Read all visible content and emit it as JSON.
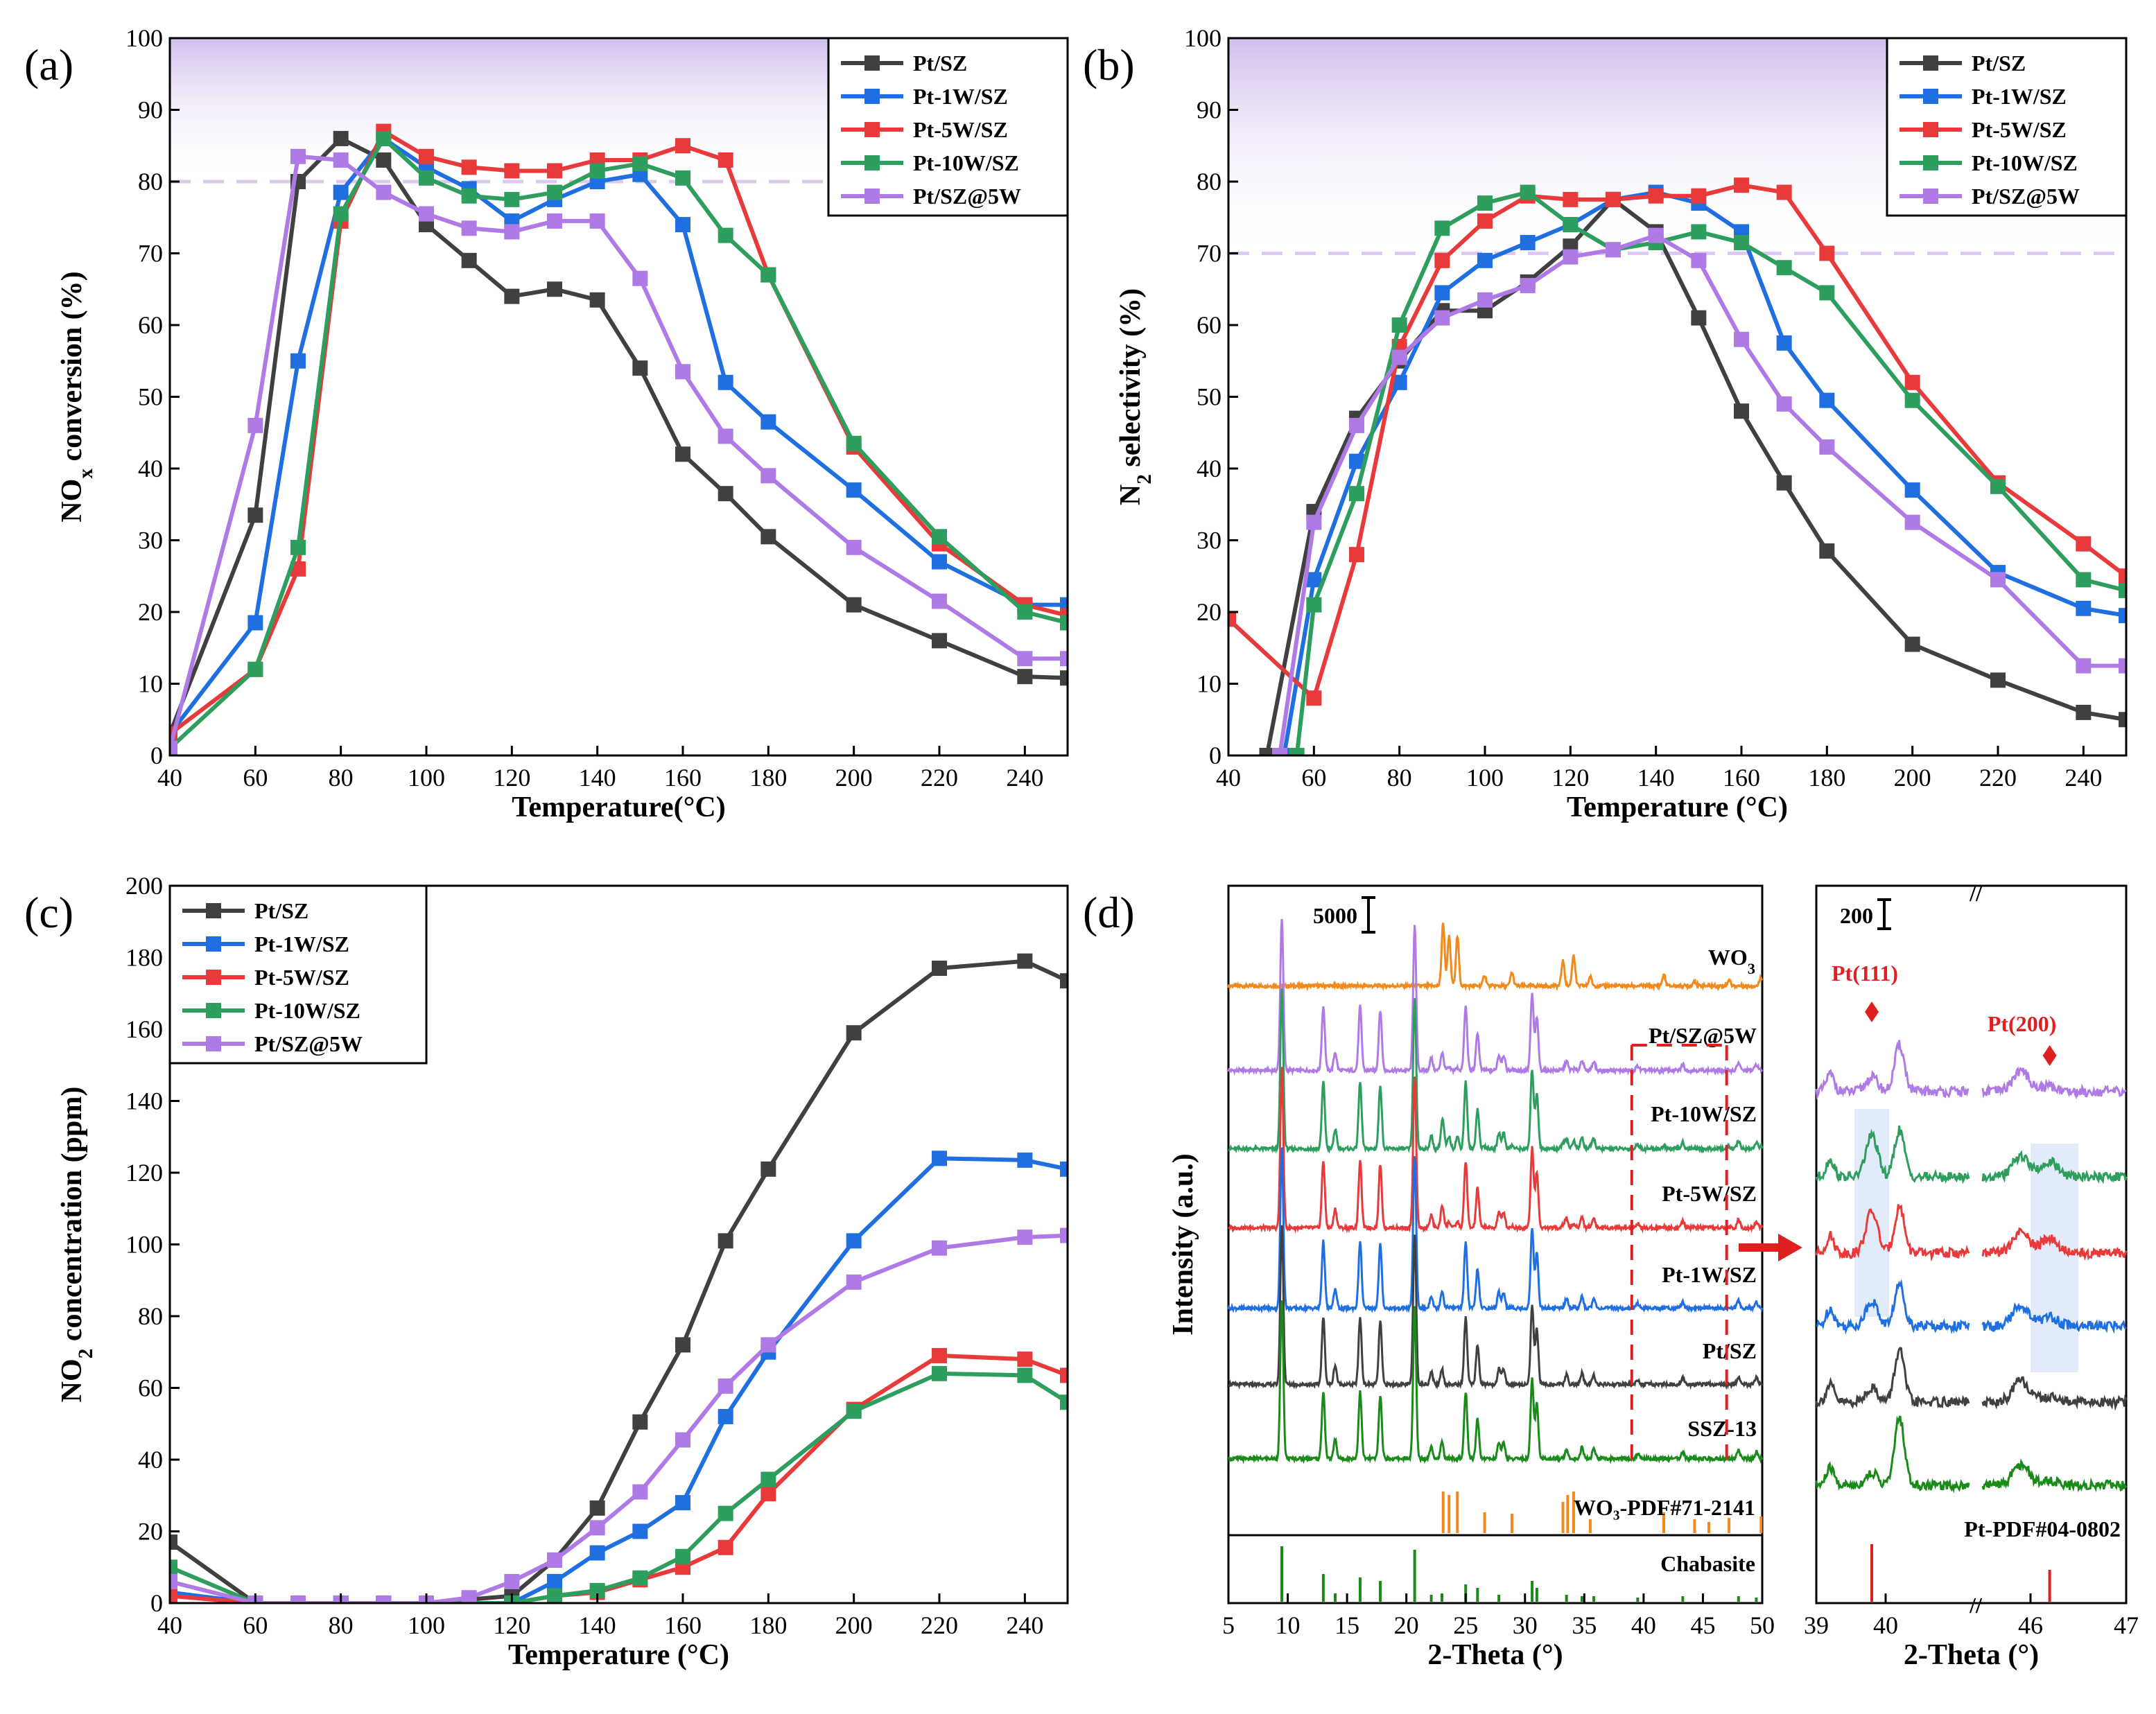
{
  "colors": {
    "Pt/SZ": "#404040",
    "Pt-1W/SZ": "#1f6fe0",
    "Pt-5W/SZ": "#e83a3a",
    "Pt-10W/SZ": "#2e9e5e",
    "Pt/SZ@5W": "#b07ae6",
    "WO3": "#f08a1c",
    "SSZ-13": "#1a8a1a",
    "Chabasite": "#1a8a1a",
    "Pt-PDF": "#e02020"
  },
  "chart_data": [
    {
      "id": "a",
      "type": "line",
      "panel_label": "(a)",
      "xlabel": "Temperature(°C)",
      "ylabel": "NOx conversion (%)",
      "xlim": [
        40,
        250
      ],
      "ylim": [
        0,
        100
      ],
      "xticks": [
        40,
        60,
        80,
        100,
        120,
        140,
        160,
        180,
        200,
        220,
        240
      ],
      "yticks": [
        0,
        10,
        20,
        30,
        40,
        50,
        60,
        70,
        80,
        90,
        100
      ],
      "reference_line": 80,
      "shade_from": 80,
      "legend": [
        "Pt/SZ",
        "Pt-1W/SZ",
        "Pt-5W/SZ",
        "Pt-10W/SZ",
        "Pt/SZ@5W"
      ],
      "series": [
        {
          "name": "Pt/SZ",
          "x": [
            40,
            60,
            70,
            80,
            90,
            100,
            110,
            120,
            130,
            140,
            150,
            160,
            170,
            180,
            200,
            220,
            240,
            250
          ],
          "y": [
            3,
            33.5,
            80,
            86,
            83,
            74,
            69,
            64,
            65,
            63.5,
            54,
            42,
            36.5,
            30.5,
            21,
            16,
            11,
            10.8
          ]
        },
        {
          "name": "Pt-1W/SZ",
          "x": [
            40,
            60,
            70,
            80,
            90,
            100,
            110,
            120,
            130,
            140,
            150,
            160,
            170,
            180,
            200,
            220,
            240,
            250
          ],
          "y": [
            3,
            18.5,
            55,
            78.5,
            86,
            82,
            79,
            74.5,
            77.5,
            80,
            81,
            74,
            52,
            46.5,
            37,
            27,
            21,
            21
          ]
        },
        {
          "name": "Pt-5W/SZ",
          "x": [
            40,
            60,
            70,
            80,
            90,
            100,
            110,
            120,
            130,
            140,
            150,
            160,
            170,
            180,
            200,
            220,
            240,
            250
          ],
          "y": [
            3,
            12,
            26,
            74.5,
            87,
            83.5,
            82,
            81.5,
            81.5,
            83,
            83,
            85,
            83,
            67,
            43,
            29.5,
            21,
            19.5
          ]
        },
        {
          "name": "Pt-10W/SZ",
          "x": [
            40,
            60,
            70,
            80,
            90,
            100,
            110,
            120,
            130,
            140,
            150,
            160,
            170,
            180,
            200,
            220,
            240,
            250
          ],
          "y": [
            1,
            12,
            29,
            75.5,
            86,
            80.5,
            78,
            77.5,
            78.5,
            81.5,
            82.5,
            80.5,
            72.5,
            67,
            43.5,
            30.5,
            20,
            18.5
          ]
        },
        {
          "name": "Pt/SZ@5W",
          "x": [
            40,
            60,
            70,
            80,
            90,
            100,
            110,
            120,
            130,
            140,
            150,
            160,
            170,
            180,
            200,
            220,
            240,
            250
          ],
          "y": [
            1,
            46,
            83.5,
            83,
            78.5,
            75.5,
            73.5,
            73,
            74.5,
            74.5,
            66.5,
            53.5,
            44.5,
            39,
            29,
            21.5,
            13.5,
            13.5
          ]
        }
      ]
    },
    {
      "id": "b",
      "type": "line",
      "panel_label": "(b)",
      "xlabel": "Temperature (°C)",
      "ylabel": "N2 selectivity (%)",
      "xlim": [
        40,
        250
      ],
      "ylim": [
        0,
        100
      ],
      "xticks": [
        40,
        60,
        80,
        100,
        120,
        140,
        160,
        180,
        200,
        220,
        240
      ],
      "yticks": [
        0,
        10,
        20,
        30,
        40,
        50,
        60,
        70,
        80,
        90,
        100
      ],
      "reference_line": 70,
      "shade_from": 70,
      "legend": [
        "Pt/SZ",
        "Pt-1W/SZ",
        "Pt-5W/SZ",
        "Pt-10W/SZ",
        "Pt/SZ@5W"
      ],
      "series": [
        {
          "name": "Pt/SZ",
          "x": [
            49,
            60,
            70,
            80,
            90,
            100,
            110,
            120,
            130,
            140,
            150,
            160,
            170,
            180,
            200,
            220,
            240,
            250
          ],
          "y": [
            0,
            34,
            47,
            55,
            62,
            62,
            66,
            71,
            77.5,
            73,
            61,
            48,
            38,
            28.5,
            15.5,
            10.5,
            6,
            5
          ]
        },
        {
          "name": "Pt-1W/SZ",
          "x": [
            53,
            60,
            70,
            80,
            90,
            100,
            110,
            120,
            130,
            140,
            150,
            160,
            170,
            180,
            200,
            220,
            240,
            250
          ],
          "y": [
            0,
            24.5,
            41,
            52,
            64.5,
            69,
            71.5,
            74,
            77.5,
            78.5,
            77,
            73,
            57.5,
            49.5,
            37,
            25.5,
            20.5,
            19.5
          ]
        },
        {
          "name": "Pt-5W/SZ",
          "x": [
            40,
            60,
            70,
            80,
            90,
            100,
            110,
            120,
            130,
            140,
            150,
            160,
            170,
            180,
            200,
            220,
            240,
            250
          ],
          "y": [
            19,
            8,
            28,
            57,
            69,
            74.5,
            78,
            77.5,
            77.5,
            78,
            78,
            79.5,
            78.5,
            70,
            52,
            38,
            29.5,
            25
          ]
        },
        {
          "name": "Pt-10W/SZ",
          "x": [
            56,
            60,
            70,
            80,
            90,
            100,
            110,
            120,
            130,
            140,
            150,
            160,
            170,
            180,
            200,
            220,
            240,
            250
          ],
          "y": [
            0,
            21,
            36.5,
            60,
            73.5,
            77,
            78.5,
            74,
            70.5,
            71.5,
            73,
            71.5,
            68,
            64.5,
            49.5,
            37.5,
            24.5,
            23
          ]
        },
        {
          "name": "Pt/SZ@5W",
          "x": [
            52,
            60,
            70,
            80,
            90,
            100,
            110,
            120,
            130,
            140,
            150,
            160,
            170,
            180,
            200,
            220,
            240,
            250
          ],
          "y": [
            0,
            32.5,
            46,
            55.5,
            61,
            63.5,
            65.5,
            69.5,
            70.5,
            72.5,
            69,
            58,
            49,
            43,
            32.5,
            24.5,
            12.5,
            12.5
          ]
        }
      ]
    },
    {
      "id": "c",
      "type": "line",
      "panel_label": "(c)",
      "xlabel": "Temperature (°C)",
      "ylabel": "NO2 concentration (ppm)",
      "xlim": [
        40,
        250
      ],
      "ylim": [
        0,
        200
      ],
      "xticks": [
        40,
        60,
        80,
        100,
        120,
        140,
        160,
        180,
        200,
        220,
        240
      ],
      "yticks": [
        0,
        20,
        40,
        60,
        80,
        100,
        120,
        140,
        160,
        180,
        200
      ],
      "legend": [
        "Pt/SZ",
        "Pt-1W/SZ",
        "Pt-5W/SZ",
        "Pt-10W/SZ",
        "Pt/SZ@5W"
      ],
      "series": [
        {
          "name": "Pt/SZ",
          "x": [
            40,
            60,
            70,
            80,
            90,
            100,
            110,
            120,
            130,
            140,
            150,
            160,
            170,
            180,
            200,
            220,
            240,
            250
          ],
          "y": [
            17,
            0,
            0,
            0,
            0,
            0,
            1,
            2,
            12,
            26.5,
            50.5,
            72,
            101,
            121,
            159,
            177,
            179,
            173.5
          ]
        },
        {
          "name": "Pt-1W/SZ",
          "x": [
            40,
            60,
            70,
            80,
            90,
            100,
            110,
            120,
            130,
            140,
            150,
            160,
            170,
            180,
            200,
            220,
            240,
            250
          ],
          "y": [
            3,
            0,
            0,
            0,
            0,
            0,
            0,
            0,
            6,
            14,
            20,
            28,
            52,
            70,
            101,
            124,
            123.5,
            121
          ]
        },
        {
          "name": "Pt-5W/SZ",
          "x": [
            40,
            60,
            70,
            80,
            90,
            100,
            110,
            120,
            130,
            140,
            150,
            160,
            170,
            180,
            200,
            220,
            240,
            250
          ],
          "y": [
            2,
            0,
            0,
            0,
            0,
            0,
            0,
            0,
            2,
            3,
            6.5,
            10,
            15.5,
            30.5,
            54,
            69,
            68,
            63.5
          ]
        },
        {
          "name": "Pt-10W/SZ",
          "x": [
            40,
            60,
            70,
            80,
            90,
            100,
            110,
            120,
            130,
            140,
            150,
            160,
            170,
            180,
            200,
            220,
            240,
            250
          ],
          "y": [
            10,
            0,
            0,
            0,
            0,
            0,
            0,
            0,
            2,
            3.5,
            7,
            13,
            25,
            34.5,
            53.5,
            64,
            63.5,
            56
          ]
        },
        {
          "name": "Pt/SZ@5W",
          "x": [
            40,
            60,
            70,
            80,
            90,
            100,
            110,
            120,
            130,
            140,
            150,
            160,
            170,
            180,
            200,
            220,
            240,
            250
          ],
          "y": [
            6,
            0,
            0,
            0,
            0,
            0,
            1.5,
            6,
            12,
            21,
            31,
            45.5,
            60.5,
            72,
            89.5,
            99,
            102,
            102.5
          ]
        }
      ]
    },
    {
      "id": "d",
      "type": "line",
      "panel_label": "(d)",
      "subtype": "xrd_stacked",
      "xlabel": "2-Theta (°)",
      "ylabel": "Intensity (a.u.)",
      "left": {
        "xlim": [
          5,
          50
        ],
        "xticks": [
          5,
          10,
          15,
          20,
          25,
          30,
          35,
          40,
          45,
          50
        ],
        "scale_bar": "5000",
        "traces": [
          "WO3",
          "Pt/SZ@5W",
          "Pt-10W/SZ",
          "Pt-5W/SZ",
          "Pt-1W/SZ",
          "Pt/SZ",
          "SSZ-13"
        ],
        "ssz13_peaks": [
          [
            9.5,
            1.0
          ],
          [
            13.0,
            0.42
          ],
          [
            14.0,
            0.12
          ],
          [
            16.1,
            0.42
          ],
          [
            17.8,
            0.4
          ],
          [
            20.7,
            0.95
          ],
          [
            22.1,
            0.08
          ],
          [
            23.0,
            0.1
          ],
          [
            25.0,
            0.42
          ],
          [
            26.0,
            0.25
          ],
          [
            27.8,
            0.1
          ],
          [
            28.2,
            0.1
          ],
          [
            30.6,
            0.5
          ],
          [
            31.0,
            0.35
          ],
          [
            33.5,
            0.06
          ],
          [
            34.8,
            0.07
          ],
          [
            35.8,
            0.06
          ],
          [
            39.5,
            0.03
          ],
          [
            43.3,
            0.04
          ],
          [
            48.0,
            0.05
          ],
          [
            49.5,
            0.04
          ]
        ],
        "wo3_peaks": [
          [
            23.1,
            0.7
          ],
          [
            23.6,
            0.55
          ],
          [
            24.3,
            0.55
          ],
          [
            26.6,
            0.12
          ],
          [
            28.9,
            0.15
          ],
          [
            33.2,
            0.28
          ],
          [
            34.1,
            0.35
          ],
          [
            35.5,
            0.1
          ],
          [
            41.7,
            0.12
          ],
          [
            44.3,
            0.06
          ],
          [
            47.2,
            0.07
          ],
          [
            49.9,
            0.1
          ]
        ],
        "reference_labels": [
          "WO3-PDF#71-2141",
          "Chabasite"
        ],
        "wo3_ref_positions": [
          23.1,
          23.6,
          24.3,
          26.6,
          28.9,
          33.2,
          33.6,
          34.1,
          35.5,
          41.7,
          44.3,
          45.5,
          47.2,
          49.9
        ],
        "chabasite_ref_positions": [
          9.5,
          13.0,
          14.0,
          16.1,
          17.8,
          20.7,
          22.1,
          23.0,
          25.0,
          26.0,
          27.8,
          30.6,
          31.0,
          33.5,
          34.8,
          35.8,
          39.5,
          43.3,
          48.0,
          49.5
        ],
        "dashed_lines": [
          39.0,
          47.0
        ]
      },
      "right": {
        "xticks": [
          39,
          40,
          46,
          47
        ],
        "scale_bar": "200",
        "annotations": [
          "Pt(111)",
          "Pt(200)"
        ],
        "pt111": 39.8,
        "pt200": 46.2,
        "reference_label": "Pt-PDF#04-0802"
      }
    }
  ]
}
